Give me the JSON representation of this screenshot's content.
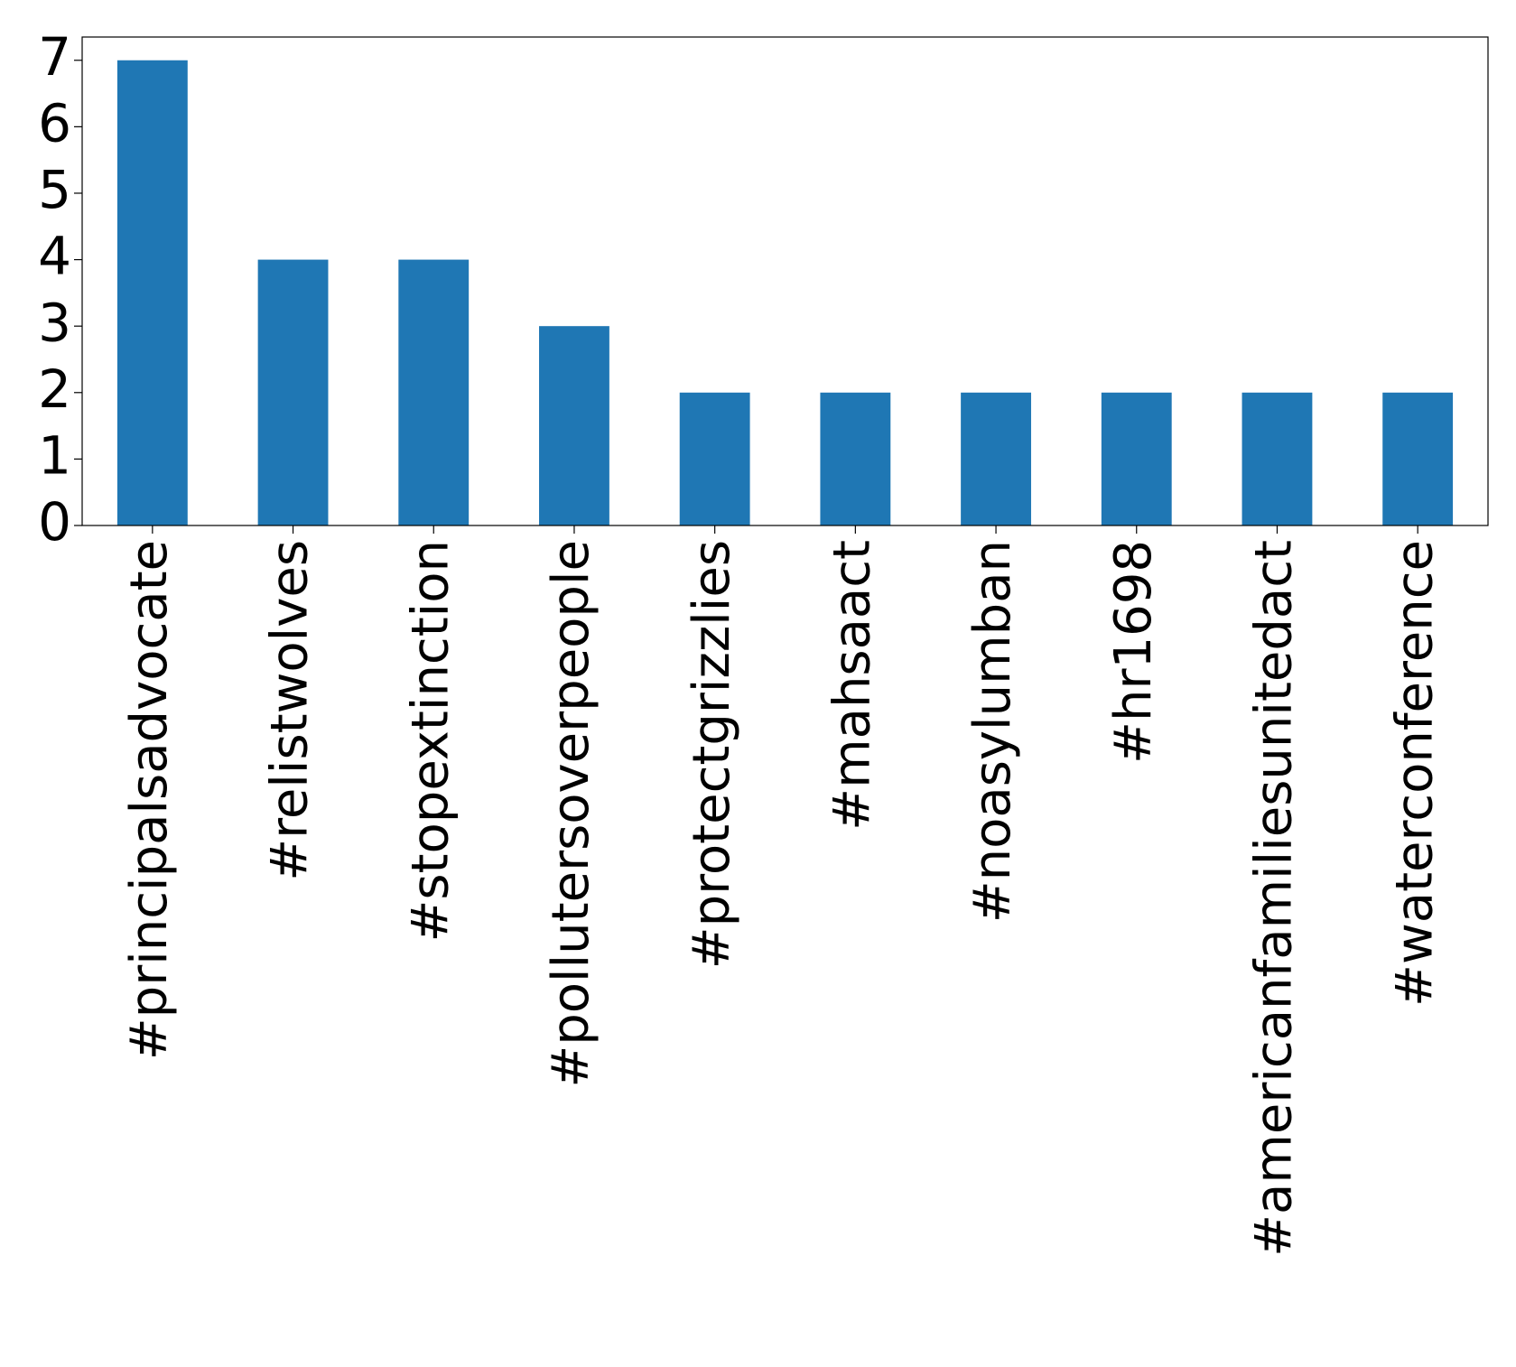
{
  "chart_data": {
    "type": "bar",
    "categories": [
      "#principalsadvocate",
      "#relistwolves",
      "#stopextinction",
      "#pollutersoverpeople",
      "#protectgrizzlies",
      "#mahsaact",
      "#noasylumban",
      "#hr1698",
      "#americanfamiliesunitedact",
      "#waterconference"
    ],
    "values": [
      7,
      4,
      4,
      3,
      2,
      2,
      2,
      2,
      2,
      2
    ],
    "color": "#1f77b4",
    "ylim": [
      0,
      7.35
    ],
    "yticks": [
      0,
      1,
      2,
      3,
      4,
      5,
      6,
      7
    ],
    "grid": false
  }
}
